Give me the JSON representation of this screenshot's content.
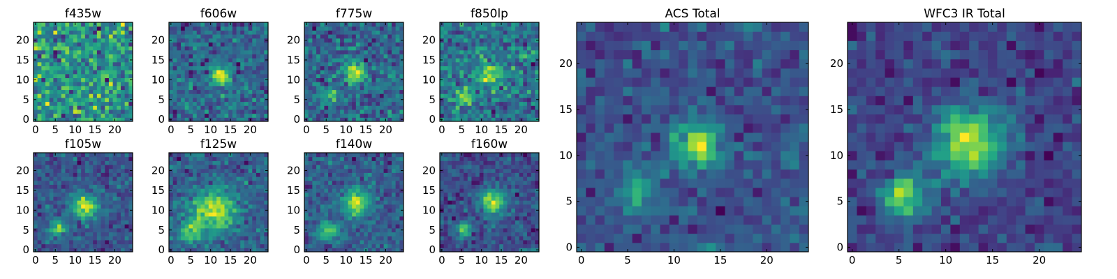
{
  "chart_data": [
    {
      "type": "heatmap",
      "title": "f435w",
      "nx": 25,
      "ny": 25,
      "xlim": [
        -0.5,
        24.5
      ],
      "ylim": [
        -0.5,
        24.5
      ],
      "xticks": [
        0,
        5,
        10,
        15,
        20
      ],
      "yticks": [
        0,
        5,
        10,
        15,
        20
      ],
      "sources": [],
      "noise": 0.9,
      "base": 0.62,
      "seed": 11
    },
    {
      "type": "heatmap",
      "title": "f606w",
      "nx": 25,
      "ny": 25,
      "xlim": [
        -0.5,
        24.5
      ],
      "ylim": [
        -0.5,
        24.5
      ],
      "xticks": [
        0,
        5,
        10,
        15,
        20
      ],
      "yticks": [
        0,
        5,
        10,
        15,
        20
      ],
      "sources": [
        {
          "x": 12.5,
          "y": 11,
          "amp": 0.75,
          "sigma": 1.6
        }
      ],
      "noise": 0.7,
      "base": 0.45,
      "seed": 23
    },
    {
      "type": "heatmap",
      "title": "f775w",
      "nx": 25,
      "ny": 25,
      "xlim": [
        -0.5,
        24.5
      ],
      "ylim": [
        -0.5,
        24.5
      ],
      "xticks": [
        0,
        5,
        10,
        15,
        20
      ],
      "yticks": [
        0,
        5,
        10,
        15,
        20
      ],
      "sources": [
        {
          "x": 12.5,
          "y": 12,
          "amp": 0.6,
          "sigma": 1.8
        },
        {
          "x": 6,
          "y": 6,
          "amp": 0.45,
          "sigma": 1.4
        }
      ],
      "noise": 0.7,
      "base": 0.45,
      "seed": 37
    },
    {
      "type": "heatmap",
      "title": "f850lp",
      "nx": 25,
      "ny": 25,
      "xlim": [
        -0.5,
        24.5
      ],
      "ylim": [
        -0.5,
        24.5
      ],
      "xticks": [
        0,
        5,
        10,
        15,
        20
      ],
      "yticks": [
        0,
        5,
        10,
        15,
        20
      ],
      "sources": [
        {
          "x": 12.5,
          "y": 11.5,
          "amp": 0.5,
          "sigma": 2.0
        },
        {
          "x": 6,
          "y": 6,
          "amp": 0.45,
          "sigma": 1.5
        },
        {
          "x": 21,
          "y": 16,
          "amp": 0.35,
          "sigma": 1.0
        }
      ],
      "noise": 0.7,
      "base": 0.5,
      "seed": 41
    },
    {
      "type": "heatmap",
      "title": "f105w",
      "nx": 25,
      "ny": 25,
      "xlim": [
        -0.5,
        24.5
      ],
      "ylim": [
        -0.5,
        24.5
      ],
      "xticks": [
        0,
        5,
        10,
        15,
        20
      ],
      "yticks": [
        0,
        5,
        10,
        15,
        20
      ],
      "sources": [
        {
          "x": 12.5,
          "y": 11,
          "amp": 0.6,
          "sigma": 2.2
        },
        {
          "x": 5.5,
          "y": 5.5,
          "amp": 0.45,
          "sigma": 1.6
        }
      ],
      "noise": 0.45,
      "base": 0.45,
      "seed": 53
    },
    {
      "type": "heatmap",
      "title": "f125w",
      "nx": 25,
      "ny": 25,
      "xlim": [
        -0.5,
        24.5
      ],
      "ylim": [
        -0.5,
        24.5
      ],
      "xticks": [
        0,
        5,
        10,
        15,
        20
      ],
      "yticks": [
        0,
        5,
        10,
        15,
        20
      ],
      "sources": [
        {
          "x": 11,
          "y": 10,
          "amp": 0.55,
          "sigma": 3.5
        },
        {
          "x": 5,
          "y": 5,
          "amp": 0.45,
          "sigma": 2.0
        }
      ],
      "noise": 0.45,
      "base": 0.5,
      "seed": 67
    },
    {
      "type": "heatmap",
      "title": "f140w",
      "nx": 25,
      "ny": 25,
      "xlim": [
        -0.5,
        24.5
      ],
      "ylim": [
        -0.5,
        24.5
      ],
      "xticks": [
        0,
        5,
        10,
        15,
        20
      ],
      "yticks": [
        0,
        5,
        10,
        15,
        20
      ],
      "sources": [
        {
          "x": 12.5,
          "y": 12,
          "amp": 0.55,
          "sigma": 2.4
        },
        {
          "x": 5.5,
          "y": 5,
          "amp": 0.4,
          "sigma": 1.8
        }
      ],
      "noise": 0.45,
      "base": 0.48,
      "seed": 71
    },
    {
      "type": "heatmap",
      "title": "f160w",
      "nx": 25,
      "ny": 25,
      "xlim": [
        -0.5,
        24.5
      ],
      "ylim": [
        -0.5,
        24.5
      ],
      "xticks": [
        0,
        5,
        10,
        15,
        20
      ],
      "yticks": [
        0,
        5,
        10,
        15,
        20
      ],
      "sources": [
        {
          "x": 13,
          "y": 12,
          "amp": 0.6,
          "sigma": 2.2
        },
        {
          "x": 5.5,
          "y": 5,
          "amp": 0.4,
          "sigma": 1.5
        }
      ],
      "noise": 0.45,
      "base": 0.45,
      "seed": 83
    },
    {
      "type": "heatmap",
      "title": "ACS Total",
      "nx": 25,
      "ny": 25,
      "xlim": [
        -0.5,
        24.5
      ],
      "ylim": [
        -0.5,
        24.5
      ],
      "xticks": [
        0,
        5,
        10,
        15,
        20
      ],
      "yticks": [
        0,
        5,
        10,
        15,
        20
      ],
      "sources": [
        {
          "x": 12.5,
          "y": 11,
          "amp": 0.7,
          "sigma": 1.8
        },
        {
          "x": 6,
          "y": 6,
          "amp": 0.5,
          "sigma": 1.4
        }
      ],
      "noise": 0.55,
      "base": 0.5,
      "seed": 97
    },
    {
      "type": "heatmap",
      "title": "WFC3 IR Total",
      "nx": 25,
      "ny": 25,
      "xlim": [
        -0.5,
        24.5
      ],
      "ylim": [
        -0.5,
        24.5
      ],
      "xticks": [
        0,
        5,
        10,
        15,
        20
      ],
      "yticks": [
        0,
        5,
        10,
        15,
        20
      ],
      "sources": [
        {
          "x": 12.5,
          "y": 11.5,
          "amp": 0.6,
          "sigma": 2.6
        },
        {
          "x": 5.5,
          "y": 5.5,
          "amp": 0.5,
          "sigma": 1.6
        }
      ],
      "noise": 0.35,
      "base": 0.45,
      "seed": 101
    }
  ],
  "colormap": "viridis"
}
